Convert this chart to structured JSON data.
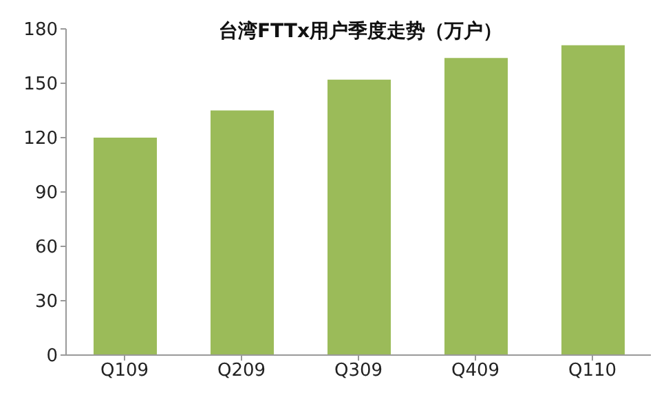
{
  "chart_data": {
    "type": "bar",
    "title": "台湾FTTx用户季度走势（万户）",
    "categories": [
      "Q109",
      "Q209",
      "Q309",
      "Q409",
      "Q110"
    ],
    "values": [
      120,
      135,
      152,
      164,
      171
    ],
    "color": "#9bbb59",
    "ylim": [
      0,
      180
    ],
    "yticks": [
      0,
      30,
      60,
      90,
      120,
      150,
      180
    ],
    "grid": false,
    "legend": false
  }
}
